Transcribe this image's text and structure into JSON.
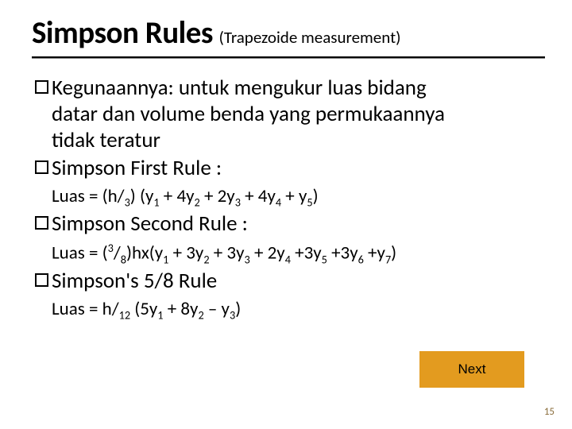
{
  "title": {
    "main": "Simpson Rules",
    "sub": "(Trapezoide measurement)"
  },
  "bullets": {
    "kegunaan_label": "Kegunaannya:",
    "kegunaan_rest1": " untuk mengukur luas bidang",
    "kegunaan_line2": "datar dan volume benda yang permukaannya",
    "kegunaan_line3": "tidak teratur",
    "rule1_label": "Simpson First Rule :",
    "rule2_label": "Simpson Second Rule :",
    "rule3_label": "Simpson's 5/8 Rule"
  },
  "formulas": {
    "rule1_prefix": "Luas = (h/",
    "rule1_denom": "3",
    "rule1_open": ") (y",
    "rule1_s1": "1",
    "rule1_p2": " + 4y",
    "rule1_s2": "2",
    "rule1_p3": " + 2y",
    "rule1_s3": "3",
    "rule1_p4": " + 4y",
    "rule1_s4": "4",
    "rule1_p5": " + y",
    "rule1_s5": "5",
    "rule1_close": ")",
    "rule2_prefix": "Luas = (",
    "rule2_num": "3",
    "rule2_slash": "/",
    "rule2_den": "8",
    "rule2_hx": ")hx(y",
    "rule2_s1": "1",
    "rule2_p2": " + 3y",
    "rule2_s2": "2",
    "rule2_p3": " + 3y",
    "rule2_s3": "3",
    "rule2_p4": " + 2y",
    "rule2_s4": "4",
    "rule2_p5": " +3y",
    "rule2_s5": "5",
    "rule2_p6": " +3y",
    "rule2_s6": "6",
    "rule2_p7": " +y",
    "rule2_s7": "7",
    "rule2_close": ")",
    "rule3_prefix": "Luas = h/",
    "rule3_den": "12",
    "rule3_open": " (5y",
    "rule3_s1": "1",
    "rule3_p2": " + 8y",
    "rule3_s2": "2",
    "rule3_p3": " – y",
    "rule3_s3": "3",
    "rule3_close": ")"
  },
  "next_label": "Next",
  "page_number": "15",
  "colors": {
    "accent": "#e39b1f",
    "text": "#000000",
    "pagenum": "#8a6d3b",
    "bg": "#ffffff"
  }
}
